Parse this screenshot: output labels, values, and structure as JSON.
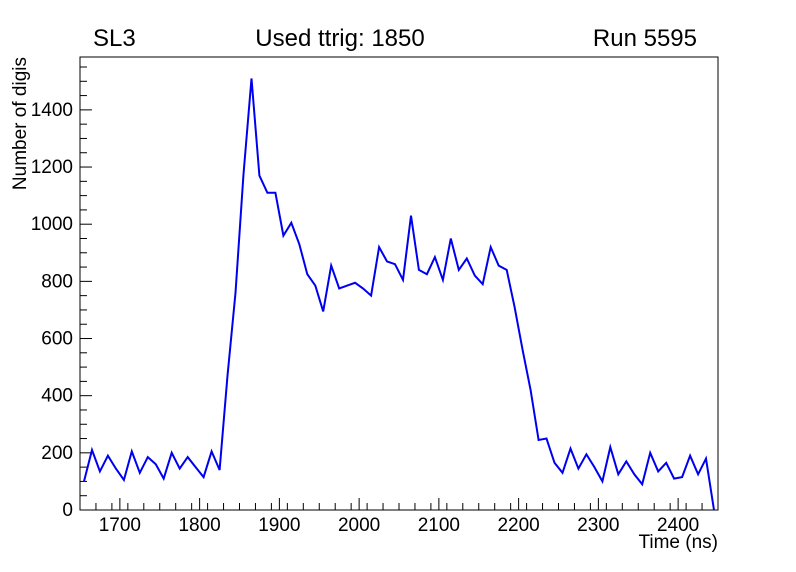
{
  "titles": {
    "left": "SL3",
    "center": "Used ttrig: 1850",
    "right": "Run 5595"
  },
  "chart_data": {
    "type": "line",
    "title": "Used ttrig: 1850",
    "xlabel": "Time (ns)",
    "ylabel": "Number of digis",
    "xlim": [
      1650,
      2450
    ],
    "ylim": [
      0,
      1585
    ],
    "grid": "off",
    "legend": "none",
    "line_color": "#0000f0",
    "axis_color": "#000000",
    "x_major_ticks": [
      1700,
      1800,
      1900,
      2000,
      2100,
      2200,
      2300,
      2400
    ],
    "x_minor_step": 20,
    "y_major_ticks": [
      0,
      200,
      400,
      600,
      800,
      1000,
      1200,
      1400
    ],
    "y_minor_step": 50,
    "x": [
      1655,
      1665,
      1675,
      1685,
      1695,
      1705,
      1715,
      1725,
      1735,
      1745,
      1755,
      1765,
      1775,
      1785,
      1795,
      1805,
      1815,
      1825,
      1835,
      1845,
      1855,
      1865,
      1875,
      1885,
      1895,
      1905,
      1915,
      1925,
      1935,
      1945,
      1955,
      1965,
      1975,
      1985,
      1995,
      2005,
      2015,
      2025,
      2035,
      2045,
      2055,
      2065,
      2075,
      2085,
      2095,
      2105,
      2115,
      2125,
      2135,
      2145,
      2155,
      2165,
      2175,
      2185,
      2195,
      2205,
      2215,
      2225,
      2235,
      2245,
      2255,
      2265,
      2275,
      2285,
      2295,
      2305,
      2315,
      2325,
      2335,
      2345,
      2355,
      2365,
      2375,
      2385,
      2395,
      2405,
      2415,
      2425,
      2435,
      2445
    ],
    "values": [
      100,
      210,
      135,
      190,
      145,
      105,
      205,
      130,
      185,
      160,
      110,
      200,
      145,
      185,
      150,
      115,
      205,
      140,
      470,
      760,
      1175,
      1510,
      1170,
      1110,
      1110,
      960,
      1005,
      930,
      825,
      785,
      695,
      855,
      775,
      785,
      795,
      775,
      750,
      920,
      870,
      860,
      805,
      1030,
      840,
      825,
      885,
      805,
      950,
      840,
      880,
      820,
      790,
      920,
      855,
      840,
      710,
      560,
      420,
      245,
      250,
      165,
      130,
      215,
      145,
      195,
      150,
      100,
      220,
      125,
      170,
      125,
      90,
      200,
      135,
      165,
      110,
      115,
      190,
      125,
      180,
      0
    ]
  }
}
